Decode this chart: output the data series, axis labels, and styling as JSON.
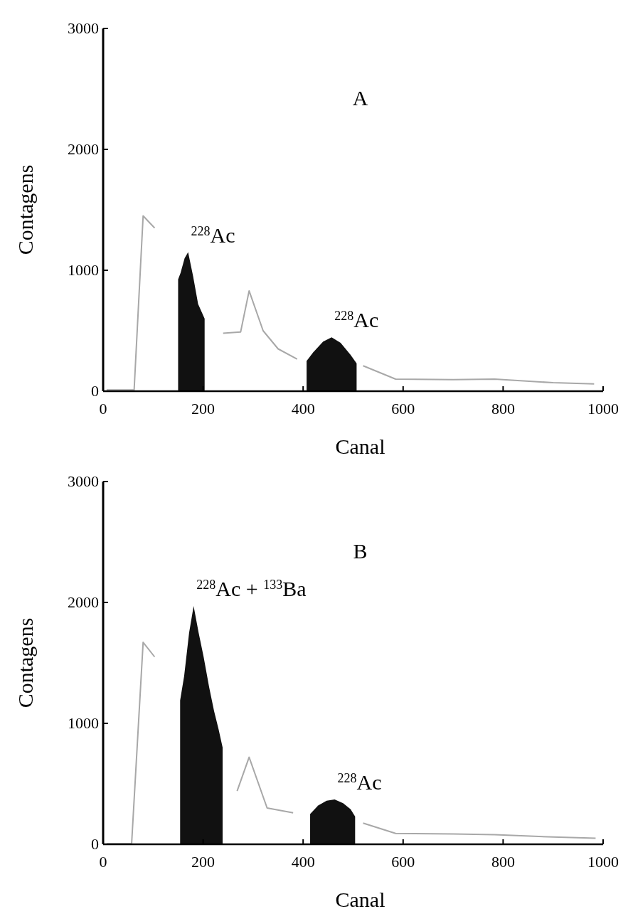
{
  "chart_data": [
    {
      "type": "line",
      "title": "A",
      "xlabel": "Canal",
      "ylabel": "Contagens",
      "xlim": [
        0,
        1000
      ],
      "xticks": [
        0,
        200,
        400,
        600,
        800,
        1000
      ],
      "ylim": [
        0,
        3000
      ],
      "yticks": [
        0,
        1000,
        2000,
        3000
      ],
      "grid": false,
      "marker": "none",
      "annotations": [
        {
          "text": "$^{228}$Ac",
          "x": 170,
          "y": 1150
        },
        {
          "text": "$^{228}$Ac",
          "x": 457,
          "y": 445
        }
      ],
      "series": [
        {
          "color": "#a8a8a8",
          "x": [
            7,
            62,
            80,
            103,
            150,
            203,
            240,
            275,
            292,
            320,
            350,
            388,
            407,
            507,
            520,
            585,
            700,
            783,
            900,
            982
          ],
          "values": [
            10,
            10,
            1450,
            1350,
            null,
            null,
            480,
            490,
            830,
            500,
            350,
            265,
            null,
            null,
            210,
            100,
            95,
            100,
            70,
            60
          ]
        },
        {
          "type": "area",
          "color": "#111111",
          "x": [
            150,
            155,
            163,
            170,
            180,
            190,
            203
          ],
          "values": [
            925,
            980,
            1100,
            1150,
            950,
            720,
            600
          ]
        },
        {
          "type": "area",
          "color": "#111111",
          "x": [
            407,
            420,
            440,
            457,
            475,
            495,
            507
          ],
          "values": [
            250,
            320,
            410,
            445,
            400,
            300,
            230
          ]
        }
      ]
    },
    {
      "type": "line",
      "title": "B",
      "xlabel": "Canal",
      "ylabel": "Contagens",
      "xlim": [
        0,
        1000
      ],
      "xticks": [
        0,
        200,
        400,
        600,
        800,
        1000
      ],
      "ylim": [
        0,
        3000
      ],
      "yticks": [
        0,
        1000,
        2000,
        3000
      ],
      "grid": false,
      "marker": "none",
      "annotations": [
        {
          "text": "$^{228}$Ac + $^{133}$Ba",
          "x": 181,
          "y": 1970
        },
        {
          "text": "$^{228}$Ac",
          "x": 463,
          "y": 370
        }
      ],
      "series": [
        {
          "color": "#a8a8a8",
          "x": [
            7,
            57,
            80,
            103,
            154,
            239,
            268,
            292,
            328,
            380,
            414,
            504,
            520,
            585,
            700,
            783,
            900,
            985
          ],
          "values": [
            5,
            5,
            1670,
            1550,
            null,
            null,
            440,
            720,
            300,
            260,
            null,
            null,
            175,
            90,
            85,
            80,
            60,
            50
          ]
        },
        {
          "type": "area",
          "color": "#111111",
          "x": [
            154,
            162,
            172,
            181,
            191,
            201,
            212,
            222,
            231,
            239
          ],
          "values": [
            1190,
            1390,
            1750,
            1970,
            1750,
            1550,
            1300,
            1100,
            950,
            800
          ]
        },
        {
          "type": "area",
          "color": "#111111",
          "x": [
            414,
            430,
            447,
            463,
            480,
            495,
            504
          ],
          "values": [
            250,
            320,
            360,
            370,
            340,
            290,
            230
          ]
        }
      ]
    }
  ]
}
